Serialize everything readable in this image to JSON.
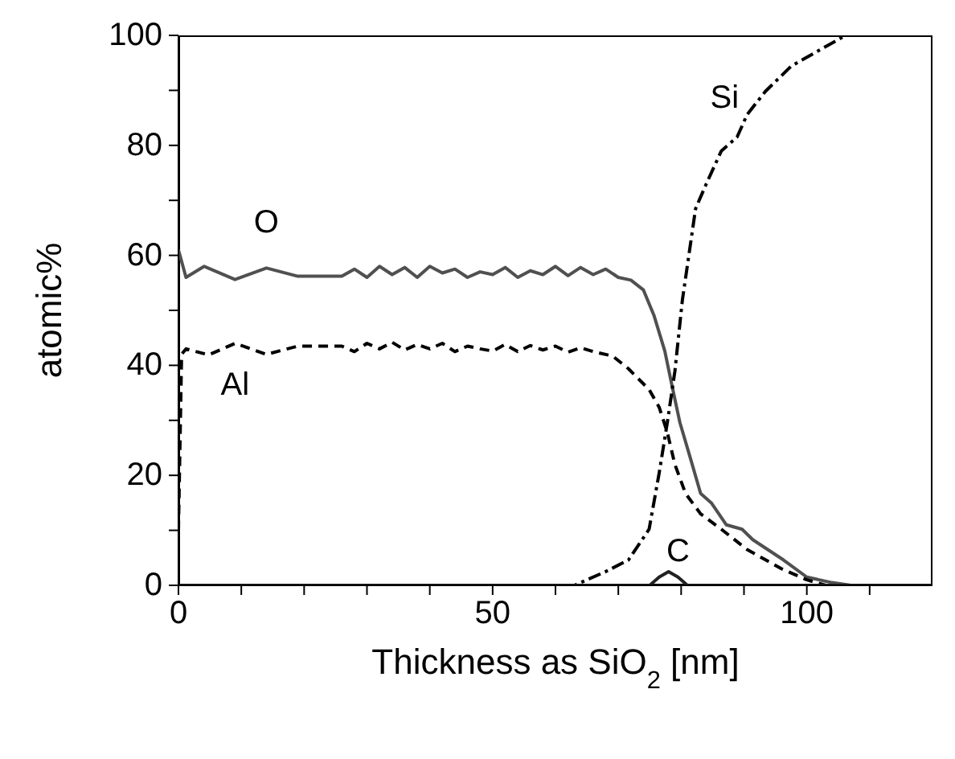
{
  "chart_data": {
    "type": "line",
    "xlabel": "Thickness as SiO$_{2}$ [nm]",
    "ylabel": "atomic%",
    "xlim": [
      0,
      120
    ],
    "xticks": [
      0,
      {
        "value": 10,
        "label": null
      },
      {
        "value": 20,
        "label": null
      },
      {
        "value": 30,
        "label": null
      },
      {
        "value": 40,
        "label": null
      },
      50,
      {
        "value": 60,
        "label": null
      },
      {
        "value": 70,
        "label": null
      },
      {
        "value": 80,
        "label": null
      },
      {
        "value": 90,
        "label": null
      },
      100,
      {
        "value": 110,
        "label": null
      }
    ],
    "ylim": [
      0,
      100
    ],
    "yticks": [
      0,
      {
        "value": 10,
        "label": null
      },
      20,
      {
        "value": 30,
        "label": null
      },
      40,
      {
        "value": 50,
        "label": null
      },
      60,
      {
        "value": 70,
        "label": null
      },
      80,
      {
        "value": 90,
        "label": null
      },
      100
    ],
    "marker": "none",
    "series": [
      {
        "name": "O",
        "color": "#505050",
        "line_style": "solid",
        "x": [
          0,
          1.2,
          4.1,
          9,
          14,
          19,
          26,
          28,
          30,
          32,
          34,
          36,
          38,
          40,
          42,
          44,
          46,
          48,
          50,
          52,
          54,
          56,
          58,
          60,
          62,
          64,
          66,
          68,
          70,
          72,
          74,
          75.7,
          77.4,
          78.6,
          79.8,
          81.5,
          83.1,
          84.8,
          87.2,
          89.7,
          91.4,
          96.3,
          100,
          104,
          107
        ],
        "values": [
          61,
          56,
          58,
          55.6,
          57.7,
          56.2,
          56.2,
          57.5,
          56,
          58,
          56.5,
          57.8,
          56,
          58,
          56.8,
          57.5,
          56,
          57,
          56.5,
          57.8,
          56,
          57.2,
          56.5,
          58,
          56.3,
          57.8,
          56.5,
          57.5,
          56,
          55.5,
          53.7,
          49,
          42.6,
          36,
          29.6,
          23,
          16.7,
          15,
          11,
          10.2,
          8.3,
          4.6,
          1.5,
          0.5,
          0
        ]
      },
      {
        "name": "Al",
        "color": "#000000",
        "line_style": "dashed",
        "x": [
          0,
          0.5,
          1.2,
          4.8,
          9,
          14,
          19,
          26,
          28,
          30,
          32,
          34,
          36,
          38,
          40,
          42,
          44,
          46,
          48,
          50,
          52,
          54,
          56,
          58,
          60,
          62,
          64,
          66,
          69.1,
          71.6,
          74.9,
          76.5,
          77.8,
          79,
          80.7,
          83.1,
          86.4,
          90.5,
          96,
          100,
          103
        ],
        "values": [
          10,
          42,
          43,
          41.9,
          44,
          42,
          43.5,
          43.5,
          42.5,
          44,
          43,
          44.2,
          42.8,
          43.8,
          43,
          44,
          42.5,
          43.5,
          43,
          42.6,
          43.8,
          42.5,
          43.6,
          42.8,
          43.5,
          42.4,
          43.2,
          42.5,
          41.7,
          39.4,
          35.6,
          32.4,
          27.8,
          22,
          16.7,
          13,
          10.2,
          6.5,
          3,
          1,
          0
        ]
      },
      {
        "name": "Si",
        "color": "#000000",
        "line_style": "dashdot",
        "x": [
          0,
          63,
          65,
          68,
          71.6,
          74.9,
          76.5,
          77.8,
          79,
          80.2,
          82.3,
          84,
          86.4,
          88.9,
          90.5,
          93.4,
          97.5,
          101.2,
          106.2,
          120
        ],
        "values": [
          0,
          0,
          1,
          2.5,
          4.6,
          10.2,
          20.4,
          29.6,
          38.9,
          51.9,
          68.5,
          73,
          79,
          81.5,
          85.6,
          89.8,
          94.4,
          96.8,
          100,
          100
        ]
      },
      {
        "name": "C",
        "color": "#222222",
        "line_style": "solid",
        "x": [
          0,
          75,
          76.5,
          78,
          79.5,
          81,
          120
        ],
        "values": [
          0,
          0,
          1.5,
          2.5,
          1.5,
          0,
          0
        ]
      }
    ]
  }
}
